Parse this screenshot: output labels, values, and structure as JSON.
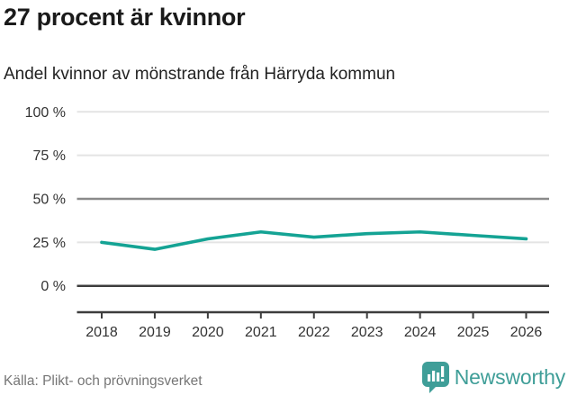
{
  "header": {
    "title": "27 procent är kvinnor",
    "subtitle": "Andel kvinnor av mönstrande från Härryda kommun"
  },
  "chart_data": {
    "type": "line",
    "title": "27 procent är kvinnor",
    "subtitle": "Andel kvinnor av mönstrande från Härryda kommun",
    "categories": [
      "2018",
      "2019",
      "2020",
      "2021",
      "2022",
      "2023",
      "2024",
      "2025",
      "2026"
    ],
    "series": [
      {
        "name": "Andel kvinnor av mönstrande",
        "values": [
          25,
          21,
          27,
          31,
          28,
          30,
          31,
          29,
          27
        ]
      }
    ],
    "unit": "%",
    "ylim": [
      0,
      100
    ],
    "yticks": [
      0,
      25,
      50,
      75,
      100
    ],
    "ytick_labels": [
      "0 %",
      "25 %",
      "50 %",
      "75 %",
      "100 %"
    ],
    "reference_line_value": 50,
    "grid": "horizontal",
    "legend_position": "none",
    "latest_value_pct": 27
  },
  "footer": {
    "source": "Källa: Plikt- och prövningsverket",
    "brand": "Newsworthy"
  },
  "colors": {
    "accent_line": "#14a394",
    "brand_teal": "#3f9e98",
    "grid_light": "#e4e4e4",
    "grid_mid": "#8a8a8a",
    "axis_dark": "#3d3d3d",
    "tick_text": "#333333",
    "title_text": "#1a1a1a",
    "source_text": "#767676"
  }
}
